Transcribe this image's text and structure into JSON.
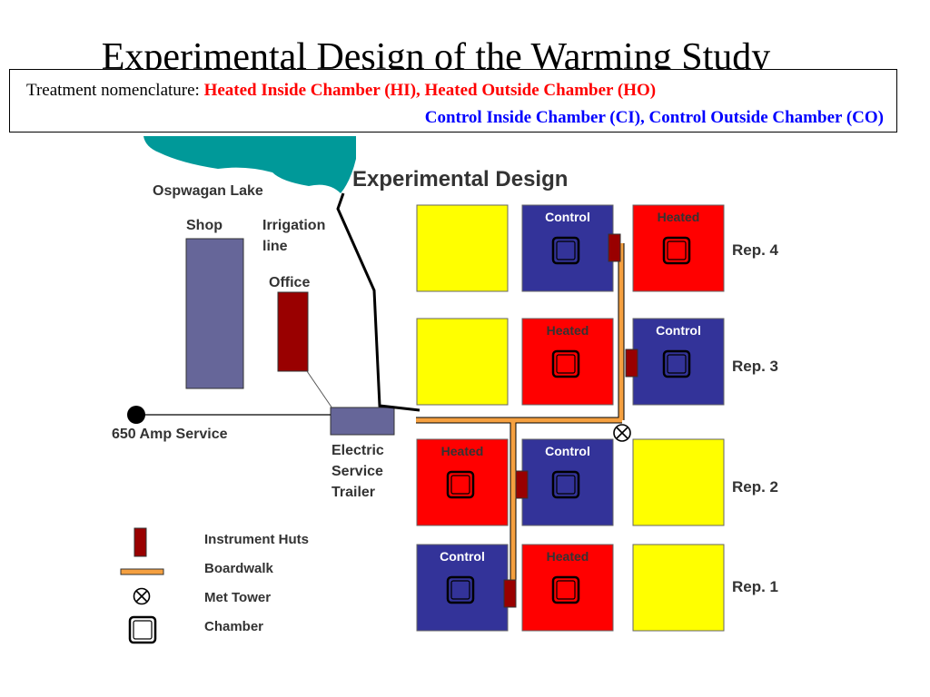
{
  "slide_title": "Experimental Design of the Warming Study",
  "nomenclature": {
    "prefix": "Treatment nomenclature:",
    "heated": "Heated Inside Chamber (HI), Heated Outside Chamber (HO)",
    "control": "Control Inside Chamber (CI), Control Outside Chamber (CO)"
  },
  "map": {
    "title": "Experimental Design",
    "lake_label": "Ospwagan Lake",
    "shop_label": "Shop",
    "irrigation_label": [
      "Irrigation",
      "line"
    ],
    "office_label": "Office",
    "service_label": "650 Amp Service",
    "trailer_label": [
      "Electric",
      "Service",
      "Trailer"
    ],
    "reps": [
      "Rep. 4",
      "Rep. 3",
      "Rep. 2",
      "Rep. 1"
    ],
    "plots": [
      {
        "row": 0,
        "col": 0,
        "type": "open",
        "label": ""
      },
      {
        "row": 0,
        "col": 1,
        "type": "control",
        "label": "Control"
      },
      {
        "row": 0,
        "col": 2,
        "type": "heated",
        "label": "Heated"
      },
      {
        "row": 1,
        "col": 0,
        "type": "open",
        "label": ""
      },
      {
        "row": 1,
        "col": 1,
        "type": "heated",
        "label": "Heated"
      },
      {
        "row": 1,
        "col": 2,
        "type": "control",
        "label": "Control"
      },
      {
        "row": 2,
        "col": 0,
        "type": "heated",
        "label": "Heated"
      },
      {
        "row": 2,
        "col": 1,
        "type": "control",
        "label": "Control"
      },
      {
        "row": 2,
        "col": 2,
        "type": "open",
        "label": ""
      },
      {
        "row": 3,
        "col": 0,
        "type": "control",
        "label": "Control"
      },
      {
        "row": 3,
        "col": 1,
        "type": "heated",
        "label": "Heated"
      },
      {
        "row": 3,
        "col": 2,
        "type": "open",
        "label": ""
      }
    ],
    "colors": {
      "control": "#333399",
      "heated": "#ff0000",
      "open": "#ffff00",
      "lake": "#009999",
      "building": "#666699",
      "hut": "#990000",
      "boardwalk": "#f5a040"
    }
  },
  "legend": {
    "instrument_huts": "Instrument Huts",
    "boardwalk": "Boardwalk",
    "met_tower": "Met Tower",
    "chamber": "Chamber"
  }
}
